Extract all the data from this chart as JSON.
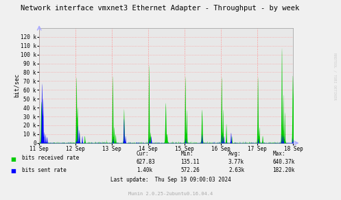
{
  "title": "Network interface vmxnet3 Ethernet Adapter - Throughput - by week",
  "ylabel": "bit/sec",
  "bg_color": "#f0f0f0",
  "plot_bg_color": "#e8e8e8",
  "grid_color": "#ff8888",
  "x_start": 0,
  "x_end": 7,
  "y_min": 0,
  "y_max": 130000,
  "y_ticks": [
    0,
    10000,
    20000,
    30000,
    40000,
    50000,
    60000,
    70000,
    80000,
    90000,
    100000,
    110000,
    120000
  ],
  "x_tick_labels": [
    "11 Sep",
    "12 Sep",
    "13 Sep",
    "14 Sep",
    "15 Sep",
    "16 Sep",
    "17 Sep",
    "18 Sep"
  ],
  "x_tick_positions": [
    0,
    1,
    2,
    3,
    4,
    5,
    6,
    7
  ],
  "vline_positions": [
    0,
    1,
    2,
    3,
    4,
    5,
    6,
    7
  ],
  "legend_items": [
    "bits received rate",
    "bits sent rate"
  ],
  "green_color": "#00cc00",
  "blue_color": "#0000ff",
  "arrow_color": "#aaaaff",
  "rrdtool_label": "RRDTOOL / TOBI OETIKER",
  "last_update": "Last update:  Thu Sep 19 09:00:03 2024",
  "munin_version": "Munin 2.0.25-2ubuntu0.16.04.4",
  "stats": {
    "headers": [
      "Cur:",
      "Min:",
      "Avg:",
      "Max:"
    ],
    "received": [
      "627.83",
      "135.11",
      "3.77k",
      "640.37k"
    ],
    "sent": [
      "1.40k",
      "572.26",
      "2.63k",
      "182.20k"
    ]
  }
}
